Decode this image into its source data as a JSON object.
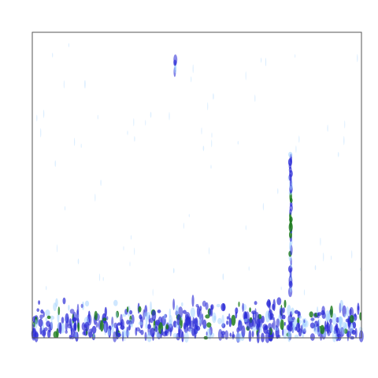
{
  "chart_data": {
    "type": "heatmap",
    "title": "",
    "xlabel": "",
    "ylabel": "",
    "xlim": [
      0,
      1
    ],
    "ylim": [
      0,
      1
    ],
    "grid": false,
    "legend": "none",
    "colors": {
      "background": "#ffffff",
      "frame": "#555555",
      "low": "#9fd0ff",
      "mid": "#2a2ad6",
      "high": "#1a7a1a"
    },
    "vertical_ridges": [
      {
        "x": 0.433,
        "y_from": 0.87,
        "y_to": 0.91,
        "intensity": 0.7
      },
      {
        "x": 0.785,
        "y_from": 0.15,
        "y_to": 0.6,
        "intensity": 0.9
      }
    ],
    "bottom_band": {
      "y_from": 0.0,
      "y_to": 0.13,
      "intensity": 0.85
    },
    "isolated_specks": [
      {
        "x": 0.16,
        "y": 0.83,
        "v": 0.2
      },
      {
        "x": 0.55,
        "y": 0.79,
        "v": 0.15
      },
      {
        "x": 0.36,
        "y": 0.73,
        "v": 0.12
      },
      {
        "x": 0.52,
        "y": 0.62,
        "v": 0.15
      },
      {
        "x": 0.14,
        "y": 0.25,
        "v": 0.2
      },
      {
        "x": 0.43,
        "y": 0.22,
        "v": 0.25
      },
      {
        "x": 0.58,
        "y": 0.2,
        "v": 0.2
      },
      {
        "x": 0.86,
        "y": 0.23,
        "v": 0.2
      },
      {
        "x": 0.07,
        "y": 0.57,
        "v": 0.12
      },
      {
        "x": 0.93,
        "y": 0.6,
        "v": 0.12
      }
    ]
  }
}
